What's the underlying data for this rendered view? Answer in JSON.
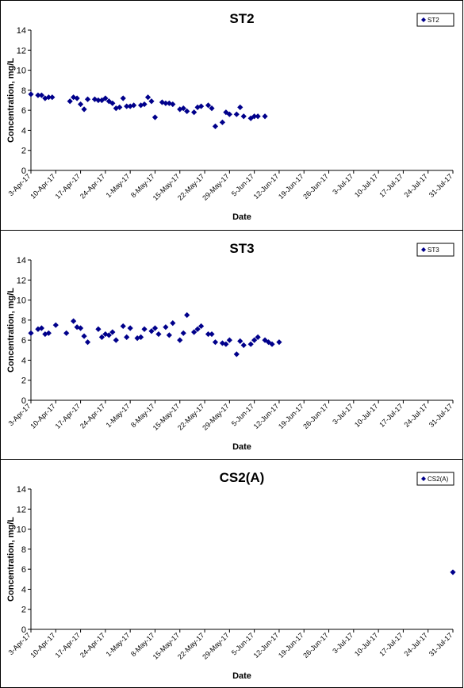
{
  "chart_data": [
    {
      "type": "scatter",
      "title": "ST2",
      "xlabel": "Date",
      "ylabel": "Concentration, mg/L",
      "ylim": [
        0,
        14
      ],
      "yticks": [
        0,
        2,
        4,
        6,
        8,
        10,
        12,
        14
      ],
      "xticks": [
        "3-Apr-17",
        "10-Apr-17",
        "17-Apr-17",
        "24-Apr-17",
        "1-May-17",
        "8-May-17",
        "15-May-17",
        "22-May-17",
        "29-May-17",
        "5-Jun-17",
        "12-Jun-17",
        "19-Jun-17",
        "26-Jun-17",
        "3-Jul-17",
        "10-Jul-17",
        "17-Jul-17",
        "24-Jul-17",
        "31-Jul-17"
      ],
      "xlim": [
        "2017-04-03",
        "2017-07-31"
      ],
      "grid": false,
      "legend": "top-right",
      "series": [
        {
          "name": "ST2",
          "color": "#00008b",
          "points": [
            {
              "x": "2017-04-03",
              "y": 7.6
            },
            {
              "x": "2017-04-05",
              "y": 7.5
            },
            {
              "x": "2017-04-06",
              "y": 7.5
            },
            {
              "x": "2017-04-07",
              "y": 7.2
            },
            {
              "x": "2017-04-08",
              "y": 7.3
            },
            {
              "x": "2017-04-09",
              "y": 7.3
            },
            {
              "x": "2017-04-14",
              "y": 6.9
            },
            {
              "x": "2017-04-15",
              "y": 7.3
            },
            {
              "x": "2017-04-16",
              "y": 7.2
            },
            {
              "x": "2017-04-17",
              "y": 6.6
            },
            {
              "x": "2017-04-18",
              "y": 6.1
            },
            {
              "x": "2017-04-19",
              "y": 7.1
            },
            {
              "x": "2017-04-21",
              "y": 7.1
            },
            {
              "x": "2017-04-22",
              "y": 7.0
            },
            {
              "x": "2017-04-23",
              "y": 7.0
            },
            {
              "x": "2017-04-24",
              "y": 7.2
            },
            {
              "x": "2017-04-25",
              "y": 6.9
            },
            {
              "x": "2017-04-26",
              "y": 6.7
            },
            {
              "x": "2017-04-27",
              "y": 6.2
            },
            {
              "x": "2017-04-28",
              "y": 6.3
            },
            {
              "x": "2017-04-29",
              "y": 7.2
            },
            {
              "x": "2017-04-30",
              "y": 6.4
            },
            {
              "x": "2017-05-01",
              "y": 6.4
            },
            {
              "x": "2017-05-02",
              "y": 6.5
            },
            {
              "x": "2017-05-04",
              "y": 6.5
            },
            {
              "x": "2017-05-05",
              "y": 6.6
            },
            {
              "x": "2017-05-06",
              "y": 7.3
            },
            {
              "x": "2017-05-07",
              "y": 6.9
            },
            {
              "x": "2017-05-08",
              "y": 5.3
            },
            {
              "x": "2017-05-10",
              "y": 6.8
            },
            {
              "x": "2017-05-11",
              "y": 6.7
            },
            {
              "x": "2017-05-12",
              "y": 6.7
            },
            {
              "x": "2017-05-13",
              "y": 6.6
            },
            {
              "x": "2017-05-15",
              "y": 6.1
            },
            {
              "x": "2017-05-16",
              "y": 6.2
            },
            {
              "x": "2017-05-17",
              "y": 5.9
            },
            {
              "x": "2017-05-19",
              "y": 5.8
            },
            {
              "x": "2017-05-20",
              "y": 6.3
            },
            {
              "x": "2017-05-21",
              "y": 6.4
            },
            {
              "x": "2017-05-23",
              "y": 6.5
            },
            {
              "x": "2017-05-24",
              "y": 6.2
            },
            {
              "x": "2017-05-25",
              "y": 4.4
            },
            {
              "x": "2017-05-27",
              "y": 4.8
            },
            {
              "x": "2017-05-28",
              "y": 5.8
            },
            {
              "x": "2017-05-29",
              "y": 5.6
            },
            {
              "x": "2017-05-31",
              "y": 5.6
            },
            {
              "x": "2017-06-01",
              "y": 6.3
            },
            {
              "x": "2017-06-02",
              "y": 5.4
            },
            {
              "x": "2017-06-04",
              "y": 5.2
            },
            {
              "x": "2017-06-05",
              "y": 5.4
            },
            {
              "x": "2017-06-06",
              "y": 5.4
            },
            {
              "x": "2017-06-08",
              "y": 5.4
            }
          ]
        }
      ]
    },
    {
      "type": "scatter",
      "title": "ST3",
      "xlabel": "Date",
      "ylabel": "Concentration, mg/L",
      "ylim": [
        0,
        14
      ],
      "yticks": [
        0,
        2,
        4,
        6,
        8,
        10,
        12,
        14
      ],
      "xticks": [
        "3-Apr-17",
        "10-Apr-17",
        "17-Apr-17",
        "24-Apr-17",
        "1-May-17",
        "8-May-17",
        "15-May-17",
        "22-May-17",
        "29-May-17",
        "5-Jun-17",
        "12-Jun-17",
        "19-Jun-17",
        "26-Jun-17",
        "3-Jul-17",
        "10-Jul-17",
        "17-Jul-17",
        "24-Jul-17",
        "31-Jul-17"
      ],
      "xlim": [
        "2017-04-03",
        "2017-07-31"
      ],
      "grid": false,
      "legend": "top-right",
      "series": [
        {
          "name": "ST3",
          "color": "#00008b",
          "points": [
            {
              "x": "2017-04-03",
              "y": 6.7
            },
            {
              "x": "2017-04-05",
              "y": 7.1
            },
            {
              "x": "2017-04-06",
              "y": 7.2
            },
            {
              "x": "2017-04-07",
              "y": 6.6
            },
            {
              "x": "2017-04-08",
              "y": 6.7
            },
            {
              "x": "2017-04-10",
              "y": 7.5
            },
            {
              "x": "2017-04-13",
              "y": 6.7
            },
            {
              "x": "2017-04-15",
              "y": 7.9
            },
            {
              "x": "2017-04-16",
              "y": 7.3
            },
            {
              "x": "2017-04-17",
              "y": 7.2
            },
            {
              "x": "2017-04-18",
              "y": 6.4
            },
            {
              "x": "2017-04-19",
              "y": 5.8
            },
            {
              "x": "2017-04-22",
              "y": 7.1
            },
            {
              "x": "2017-04-23",
              "y": 6.3
            },
            {
              "x": "2017-04-24",
              "y": 6.6
            },
            {
              "x": "2017-04-25",
              "y": 6.5
            },
            {
              "x": "2017-04-26",
              "y": 6.8
            },
            {
              "x": "2017-04-27",
              "y": 6.0
            },
            {
              "x": "2017-04-29",
              "y": 7.4
            },
            {
              "x": "2017-04-30",
              "y": 6.3
            },
            {
              "x": "2017-05-01",
              "y": 7.2
            },
            {
              "x": "2017-05-03",
              "y": 6.2
            },
            {
              "x": "2017-05-04",
              "y": 6.3
            },
            {
              "x": "2017-05-05",
              "y": 7.1
            },
            {
              "x": "2017-05-07",
              "y": 6.9
            },
            {
              "x": "2017-05-08",
              "y": 7.2
            },
            {
              "x": "2017-05-09",
              "y": 6.6
            },
            {
              "x": "2017-05-11",
              "y": 7.3
            },
            {
              "x": "2017-05-12",
              "y": 6.5
            },
            {
              "x": "2017-05-13",
              "y": 7.7
            },
            {
              "x": "2017-05-15",
              "y": 6.0
            },
            {
              "x": "2017-05-16",
              "y": 6.7
            },
            {
              "x": "2017-05-17",
              "y": 8.5
            },
            {
              "x": "2017-05-19",
              "y": 6.8
            },
            {
              "x": "2017-05-20",
              "y": 7.1
            },
            {
              "x": "2017-05-21",
              "y": 7.4
            },
            {
              "x": "2017-05-23",
              "y": 6.6
            },
            {
              "x": "2017-05-24",
              "y": 6.6
            },
            {
              "x": "2017-05-25",
              "y": 5.8
            },
            {
              "x": "2017-05-27",
              "y": 5.7
            },
            {
              "x": "2017-05-28",
              "y": 5.6
            },
            {
              "x": "2017-05-29",
              "y": 6.0
            },
            {
              "x": "2017-05-31",
              "y": 4.6
            },
            {
              "x": "2017-06-01",
              "y": 5.9
            },
            {
              "x": "2017-06-02",
              "y": 5.5
            },
            {
              "x": "2017-06-04",
              "y": 5.6
            },
            {
              "x": "2017-06-05",
              "y": 6.0
            },
            {
              "x": "2017-06-06",
              "y": 6.3
            },
            {
              "x": "2017-06-08",
              "y": 6.0
            },
            {
              "x": "2017-06-09",
              "y": 5.8
            },
            {
              "x": "2017-06-10",
              "y": 5.6
            },
            {
              "x": "2017-06-12",
              "y": 5.8
            }
          ]
        }
      ]
    },
    {
      "type": "scatter",
      "title": "CS2(A)",
      "xlabel": "Date",
      "ylabel": "Concentration, mg/L",
      "ylim": [
        0,
        14
      ],
      "yticks": [
        0,
        2,
        4,
        6,
        8,
        10,
        12,
        14
      ],
      "xticks": [
        "3-Apr-17",
        "10-Apr-17",
        "17-Apr-17",
        "24-Apr-17",
        "1-May-17",
        "8-May-17",
        "15-May-17",
        "22-May-17",
        "29-May-17",
        "5-Jun-17",
        "12-Jun-17",
        "19-Jun-17",
        "26-Jun-17",
        "3-Jul-17",
        "10-Jul-17",
        "17-Jul-17",
        "24-Jul-17",
        "31-Jul-17"
      ],
      "xlim": [
        "2017-04-03",
        "2017-07-31"
      ],
      "grid": false,
      "legend": "top-right",
      "series": [
        {
          "name": "CS2(A)",
          "color": "#00008b",
          "points": [
            {
              "x": "2017-07-31",
              "y": 5.7
            }
          ]
        }
      ]
    }
  ]
}
